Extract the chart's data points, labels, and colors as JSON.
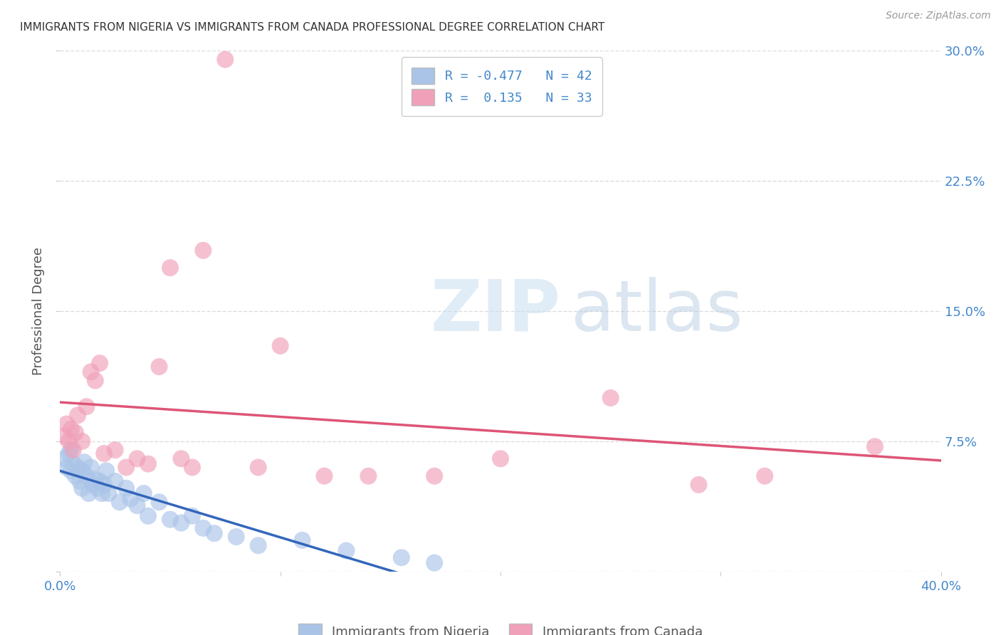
{
  "title": "IMMIGRANTS FROM NIGERIA VS IMMIGRANTS FROM CANADA PROFESSIONAL DEGREE CORRELATION CHART",
  "source": "Source: ZipAtlas.com",
  "ylabel": "Professional Degree",
  "right_yticks": [
    0.0,
    0.075,
    0.15,
    0.225,
    0.3
  ],
  "right_yticklabels": [
    "",
    "7.5%",
    "15.0%",
    "22.5%",
    "30.0%"
  ],
  "xlim": [
    0.0,
    0.4
  ],
  "ylim": [
    0.0,
    0.3
  ],
  "legend_r_nigeria": "-0.477",
  "legend_n_nigeria": "42",
  "legend_r_canada": "0.135",
  "legend_n_canada": "33",
  "nigeria_color": "#aac4e8",
  "canada_color": "#f0a0b8",
  "nigeria_line_color": "#3366bb",
  "canada_line_color": "#dd5577",
  "nigeria_scatter_x": [
    0.002,
    0.003,
    0.004,
    0.005,
    0.005,
    0.006,
    0.007,
    0.008,
    0.009,
    0.01,
    0.01,
    0.011,
    0.012,
    0.013,
    0.014,
    0.015,
    0.016,
    0.017,
    0.018,
    0.019,
    0.02,
    0.021,
    0.022,
    0.025,
    0.027,
    0.03,
    0.032,
    0.035,
    0.038,
    0.04,
    0.045,
    0.05,
    0.055,
    0.06,
    0.065,
    0.07,
    0.08,
    0.09,
    0.11,
    0.13,
    0.155,
    0.17
  ],
  "nigeria_scatter_y": [
    0.065,
    0.06,
    0.068,
    0.058,
    0.07,
    0.062,
    0.055,
    0.06,
    0.052,
    0.058,
    0.048,
    0.063,
    0.055,
    0.045,
    0.06,
    0.05,
    0.053,
    0.048,
    0.052,
    0.045,
    0.05,
    0.058,
    0.045,
    0.052,
    0.04,
    0.048,
    0.042,
    0.038,
    0.045,
    0.032,
    0.04,
    0.03,
    0.028,
    0.032,
    0.025,
    0.022,
    0.02,
    0.015,
    0.018,
    0.012,
    0.008,
    0.005
  ],
  "canada_scatter_x": [
    0.002,
    0.003,
    0.004,
    0.005,
    0.006,
    0.007,
    0.008,
    0.01,
    0.012,
    0.014,
    0.016,
    0.018,
    0.02,
    0.025,
    0.03,
    0.035,
    0.04,
    0.045,
    0.05,
    0.055,
    0.06,
    0.065,
    0.075,
    0.09,
    0.1,
    0.12,
    0.14,
    0.17,
    0.2,
    0.25,
    0.29,
    0.32,
    0.37
  ],
  "canada_scatter_y": [
    0.078,
    0.085,
    0.075,
    0.082,
    0.07,
    0.08,
    0.09,
    0.075,
    0.095,
    0.115,
    0.11,
    0.12,
    0.068,
    0.07,
    0.06,
    0.065,
    0.062,
    0.118,
    0.175,
    0.065,
    0.06,
    0.185,
    0.295,
    0.06,
    0.13,
    0.055,
    0.055,
    0.055,
    0.065,
    0.1,
    0.05,
    0.055,
    0.072
  ],
  "watermark_zip": "ZIP",
  "watermark_atlas": "atlas",
  "background_color": "#ffffff",
  "grid_color": "#dddddd",
  "title_color": "#333333",
  "axis_label_color": "#4488cc",
  "legend_text_color": "#4488cc"
}
